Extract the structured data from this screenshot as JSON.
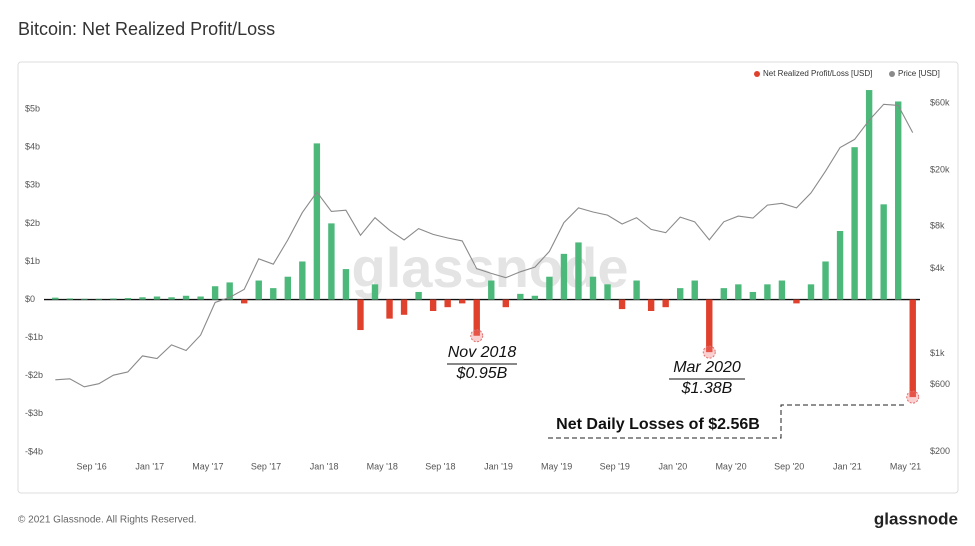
{
  "chart_data": {
    "type": "bar",
    "title": "Bitcoin: Net Realized Profit/Loss",
    "watermark": "glassnode",
    "x": [
      "2016-06",
      "2016-07",
      "2016-08",
      "2016-09",
      "2016-10",
      "2016-11",
      "2016-12",
      "2017-01",
      "2017-02",
      "2017-03",
      "2017-04",
      "2017-05",
      "2017-06",
      "2017-07",
      "2017-08",
      "2017-09",
      "2017-10",
      "2017-11",
      "2017-12",
      "2018-01",
      "2018-02",
      "2018-03",
      "2018-04",
      "2018-05",
      "2018-06",
      "2018-07",
      "2018-08",
      "2018-09",
      "2018-10",
      "2018-11",
      "2018-12",
      "2019-01",
      "2019-02",
      "2019-03",
      "2019-04",
      "2019-05",
      "2019-06",
      "2019-07",
      "2019-08",
      "2019-09",
      "2019-10",
      "2019-11",
      "2019-12",
      "2020-01",
      "2020-02",
      "2020-03",
      "2020-04",
      "2020-05",
      "2020-06",
      "2020-07",
      "2020-08",
      "2020-09",
      "2020-10",
      "2020-11",
      "2020-12",
      "2021-01",
      "2021-02",
      "2021-03",
      "2021-04",
      "2021-05"
    ],
    "series": [
      {
        "name": "Net Realized Profit/Loss [USD]",
        "color": "#e0412d",
        "positive_color": "#4cb87a",
        "values": [
          0.05,
          0.03,
          0.02,
          0.02,
          0.03,
          0.04,
          0.06,
          0.08,
          0.06,
          0.1,
          0.08,
          0.35,
          0.45,
          -0.1,
          0.5,
          0.3,
          0.6,
          1.0,
          4.1,
          2.0,
          0.8,
          -0.8,
          0.4,
          -0.5,
          -0.4,
          0.2,
          -0.3,
          -0.2,
          -0.1,
          -0.95,
          0.5,
          -0.2,
          0.15,
          0.1,
          0.6,
          1.2,
          1.5,
          0.6,
          0.4,
          -0.25,
          0.5,
          -0.3,
          -0.2,
          0.3,
          0.5,
          -1.38,
          0.3,
          0.4,
          0.2,
          0.4,
          0.5,
          -0.1,
          0.4,
          1.0,
          1.8,
          4.0,
          5.5,
          2.5,
          5.2,
          -2.56
        ]
      },
      {
        "name": "Price [USD]",
        "color": "#8a8a8a",
        "type": "line",
        "axis": "y2",
        "values": [
          650,
          660,
          580,
          610,
          700,
          740,
          960,
          920,
          1150,
          1050,
          1350,
          2300,
          2500,
          2850,
          4700,
          4300,
          6400,
          10000,
          14000,
          10200,
          10400,
          6900,
          9200,
          7500,
          6400,
          7700,
          7000,
          6600,
          6300,
          4000,
          3700,
          3450,
          3800,
          4100,
          5300,
          8500,
          10800,
          10100,
          9600,
          8300,
          9200,
          7600,
          7200,
          9300,
          8600,
          6400,
          8600,
          9450,
          9150,
          11300,
          11650,
          10800,
          13800,
          19700,
          29000,
          33100,
          45200,
          58800,
          57700,
          37000
        ]
      }
    ],
    "ylim": [
      -4.08,
      5.58
    ],
    "yticks": [
      {
        "value": 5,
        "label": "$5b"
      },
      {
        "value": 4,
        "label": "$4b"
      },
      {
        "value": 3,
        "label": "$3b"
      },
      {
        "value": 2,
        "label": "$2b"
      },
      {
        "value": 1,
        "label": "$1b"
      },
      {
        "value": 0,
        "label": "$0"
      },
      {
        "value": -1,
        "label": "-$1b"
      },
      {
        "value": -2,
        "label": "-$2b"
      },
      {
        "value": -3,
        "label": "-$3b"
      },
      {
        "value": -4,
        "label": "-$4b"
      }
    ],
    "y2lim": [
      190,
      78000
    ],
    "y2_log": true,
    "y2ticks": [
      {
        "value": 200,
        "label": "$200"
      },
      {
        "value": 600,
        "label": "$600"
      },
      {
        "value": 1000,
        "label": "$1k"
      },
      {
        "value": 4000,
        "label": "$4k"
      },
      {
        "value": 8000,
        "label": "$8k"
      },
      {
        "value": 20000,
        "label": "$20k"
      },
      {
        "value": 60000,
        "label": "$60k"
      }
    ],
    "xticks": [
      {
        "value": "2016-09",
        "label": "Sep '16"
      },
      {
        "value": "2017-01",
        "label": "Jan '17"
      },
      {
        "value": "2017-05",
        "label": "May '17"
      },
      {
        "value": "2017-09",
        "label": "Sep '17"
      },
      {
        "value": "2018-01",
        "label": "Jan '18"
      },
      {
        "value": "2018-05",
        "label": "May '18"
      },
      {
        "value": "2018-09",
        "label": "Sep '18"
      },
      {
        "value": "2019-01",
        "label": "Jan '19"
      },
      {
        "value": "2019-05",
        "label": "May '19"
      },
      {
        "value": "2019-09",
        "label": "Sep '19"
      },
      {
        "value": "2020-01",
        "label": "Jan '20"
      },
      {
        "value": "2020-05",
        "label": "May '20"
      },
      {
        "value": "2020-09",
        "label": "Sep '20"
      },
      {
        "value": "2021-01",
        "label": "Jan '21"
      },
      {
        "value": "2021-05",
        "label": "May '21"
      }
    ],
    "legend": "top-right",
    "annotations": [
      {
        "lines": [
          "Nov 2018",
          "$0.95B"
        ]
      },
      {
        "lines": [
          "Mar 2020",
          "$1.38B"
        ]
      },
      {
        "text": "Net Daily Losses of $2.56B"
      }
    ]
  },
  "footer": {
    "copyright": "© 2021 Glassnode. All Rights Reserved.",
    "logo": "glassnode"
  }
}
